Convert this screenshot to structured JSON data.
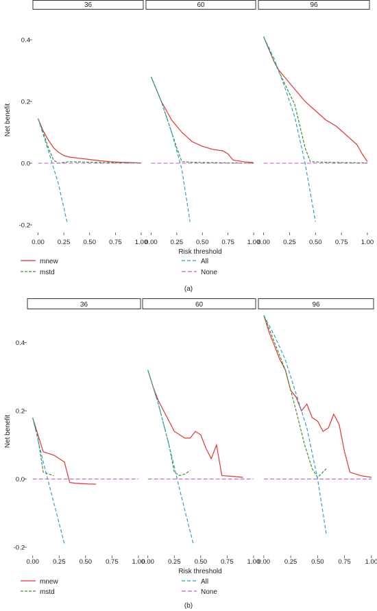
{
  "chart_data": [
    {
      "type": "line",
      "caption": "(a)",
      "ylabel": "Net benefit",
      "xlabel": "Risk threshold",
      "ylim": [
        -0.22,
        0.5
      ],
      "yticks": [
        -0.2,
        0.0,
        0.2,
        0.4
      ],
      "ytick_labels": [
        "-0.2",
        "0.0",
        "0.2",
        "0.4"
      ],
      "xticks": [
        0,
        0.25,
        0.5,
        0.75,
        1.0
      ],
      "xtick_labels": [
        "0.00",
        "0.25",
        "0.50",
        "0.75",
        "1.00"
      ],
      "xlim": [
        -0.05,
        1.02
      ],
      "legend": [
        {
          "label": "mnew",
          "color": "#e3342f"
        },
        {
          "label": "mstd",
          "color": "#3f8f2b"
        },
        {
          "label": "All",
          "color": "#2a9fd6"
        },
        {
          "label": "None",
          "color": "#c15bd6"
        }
      ],
      "facets": [
        {
          "title": "36",
          "series": [
            {
              "name": "mnew",
              "x": [
                0.0,
                0.05,
                0.1,
                0.15,
                0.2,
                0.25,
                0.3,
                0.35,
                0.4,
                0.5,
                0.6,
                0.7,
                0.8,
                0.9,
                1.0
              ],
              "y": [
                0.145,
                0.105,
                0.075,
                0.05,
                0.035,
                0.025,
                0.02,
                0.018,
                0.016,
                0.012,
                0.008,
                0.005,
                0.003,
                0.002,
                0.001
              ]
            },
            {
              "name": "mstd",
              "x": [
                0.0,
                0.05,
                0.1,
                0.15,
                0.2,
                0.3,
                0.5,
                0.7,
                1.0
              ],
              "y": [
                0.145,
                0.1,
                0.05,
                0.01,
                0.0,
                0.005,
                0.003,
                0.002,
                0.001
              ]
            },
            {
              "name": "All",
              "x": [
                0.0,
                0.1,
                0.2,
                0.28
              ],
              "y": [
                0.145,
                0.04,
                -0.07,
                -0.19
              ]
            },
            {
              "name": "None",
              "x": [
                0.0,
                1.0
              ],
              "y": [
                0.0,
                0.0
              ]
            }
          ]
        },
        {
          "title": "60",
          "series": [
            {
              "name": "mnew",
              "x": [
                0.0,
                0.05,
                0.1,
                0.15,
                0.2,
                0.25,
                0.3,
                0.35,
                0.4,
                0.5,
                0.6,
                0.7,
                0.75,
                0.8,
                0.9,
                1.0
              ],
              "y": [
                0.28,
                0.24,
                0.2,
                0.17,
                0.14,
                0.12,
                0.1,
                0.085,
                0.07,
                0.055,
                0.045,
                0.04,
                0.03,
                0.01,
                0.005,
                0.002
              ]
            },
            {
              "name": "mstd",
              "x": [
                0.0,
                0.1,
                0.2,
                0.25,
                0.3,
                0.4,
                0.6,
                0.8,
                1.0
              ],
              "y": [
                0.28,
                0.2,
                0.1,
                0.05,
                0.005,
                0.003,
                0.002,
                0.001,
                0.0
              ]
            },
            {
              "name": "All",
              "x": [
                0.0,
                0.1,
                0.2,
                0.3,
                0.38
              ],
              "y": [
                0.28,
                0.2,
                0.1,
                -0.02,
                -0.19
              ]
            },
            {
              "name": "None",
              "x": [
                0.0,
                1.0
              ],
              "y": [
                0.0,
                0.0
              ]
            }
          ]
        },
        {
          "title": "96",
          "series": [
            {
              "name": "mnew",
              "x": [
                0.0,
                0.05,
                0.1,
                0.15,
                0.2,
                0.25,
                0.3,
                0.35,
                0.4,
                0.5,
                0.6,
                0.7,
                0.8,
                0.9,
                0.95,
                1.0
              ],
              "y": [
                0.41,
                0.37,
                0.33,
                0.3,
                0.28,
                0.26,
                0.24,
                0.22,
                0.2,
                0.17,
                0.14,
                0.12,
                0.09,
                0.06,
                0.03,
                0.005
              ]
            },
            {
              "name": "mstd",
              "x": [
                0.0,
                0.1,
                0.2,
                0.3,
                0.35,
                0.4,
                0.45,
                0.6,
                0.8,
                1.0
              ],
              "y": [
                0.41,
                0.33,
                0.26,
                0.19,
                0.12,
                0.05,
                0.005,
                0.003,
                0.002,
                0.001
              ]
            },
            {
              "name": "All",
              "x": [
                0.0,
                0.1,
                0.2,
                0.3,
                0.4,
                0.5
              ],
              "y": [
                0.41,
                0.34,
                0.25,
                0.15,
                0.0,
                -0.19
              ]
            },
            {
              "name": "None",
              "x": [
                0.0,
                1.0
              ],
              "y": [
                0.0,
                0.0
              ]
            }
          ]
        }
      ]
    },
    {
      "type": "line",
      "caption": "(b)",
      "ylabel": "Net benefit",
      "xlabel": "Risk threshold",
      "ylim": [
        -0.22,
        0.5
      ],
      "yticks": [
        -0.2,
        0.0,
        0.2,
        0.4
      ],
      "ytick_labels": [
        "-0.2",
        "0.0",
        "0.2",
        "0.4"
      ],
      "xticks": [
        0,
        0.25,
        0.5,
        0.75,
        1.0
      ],
      "xtick_labels": [
        "0.00",
        "0.25",
        "0.50",
        "0.75",
        "1.00"
      ],
      "xlim": [
        -0.05,
        1.02
      ],
      "legend": [
        {
          "label": "mnew",
          "color": "#e3342f"
        },
        {
          "label": "mstd",
          "color": "#3f8f2b"
        },
        {
          "label": "All",
          "color": "#2a9fd6"
        },
        {
          "label": "None",
          "color": "#c15bd6"
        }
      ],
      "facets": [
        {
          "title": "36",
          "series": [
            {
              "name": "mnew",
              "x": [
                0.0,
                0.05,
                0.1,
                0.15,
                0.2,
                0.25,
                0.3,
                0.35,
                0.4,
                0.5,
                0.6
              ],
              "y": [
                0.18,
                0.13,
                0.08,
                0.075,
                0.07,
                0.06,
                0.05,
                -0.01,
                -0.012,
                -0.014,
                -0.015
              ]
            },
            {
              "name": "mstd",
              "x": [
                0.0,
                0.05,
                0.1,
                0.15,
                0.2
              ],
              "y": [
                0.18,
                0.12,
                0.02,
                0.015,
                0.01
              ]
            },
            {
              "name": "All",
              "x": [
                0.0,
                0.1,
                0.2,
                0.3
              ],
              "y": [
                0.18,
                0.05,
                -0.07,
                -0.19
              ]
            },
            {
              "name": "None",
              "x": [
                0.0,
                1.0
              ],
              "y": [
                0.0,
                0.0
              ]
            }
          ]
        },
        {
          "title": "60",
          "series": [
            {
              "name": "mnew",
              "x": [
                0.0,
                0.05,
                0.1,
                0.15,
                0.2,
                0.25,
                0.3,
                0.35,
                0.4,
                0.45,
                0.5,
                0.55,
                0.6,
                0.65,
                0.7,
                0.8,
                0.9
              ],
              "y": [
                0.32,
                0.27,
                0.23,
                0.2,
                0.17,
                0.14,
                0.13,
                0.12,
                0.12,
                0.14,
                0.13,
                0.09,
                0.06,
                0.1,
                0.01,
                0.008,
                0.005
              ]
            },
            {
              "name": "mstd",
              "x": [
                0.0,
                0.1,
                0.2,
                0.25,
                0.3,
                0.35,
                0.4
              ],
              "y": [
                0.32,
                0.22,
                0.1,
                0.02,
                0.01,
                0.015,
                0.025
              ]
            },
            {
              "name": "All",
              "x": [
                0.0,
                0.1,
                0.2,
                0.3,
                0.43
              ],
              "y": [
                0.32,
                0.22,
                0.1,
                -0.03,
                -0.19
              ]
            },
            {
              "name": "None",
              "x": [
                0.0,
                1.0
              ],
              "y": [
                0.0,
                0.0
              ]
            }
          ]
        },
        {
          "title": "96",
          "series": [
            {
              "name": "mnew",
              "x": [
                0.0,
                0.05,
                0.1,
                0.15,
                0.2,
                0.25,
                0.3,
                0.35,
                0.4,
                0.45,
                0.5,
                0.55,
                0.6,
                0.65,
                0.7,
                0.75,
                0.8,
                0.9,
                1.0
              ],
              "y": [
                0.48,
                0.43,
                0.39,
                0.35,
                0.32,
                0.26,
                0.24,
                0.2,
                0.22,
                0.18,
                0.17,
                0.14,
                0.15,
                0.19,
                0.16,
                0.08,
                0.02,
                0.01,
                0.005
              ]
            },
            {
              "name": "mstd",
              "x": [
                0.0,
                0.1,
                0.2,
                0.3,
                0.38,
                0.45,
                0.5,
                0.58
              ],
              "y": [
                0.48,
                0.4,
                0.32,
                0.2,
                0.1,
                0.03,
                0.005,
                0.03
              ]
            },
            {
              "name": "All",
              "x": [
                0.0,
                0.1,
                0.2,
                0.3,
                0.4,
                0.5,
                0.58
              ],
              "y": [
                0.48,
                0.42,
                0.35,
                0.25,
                0.15,
                0.0,
                -0.16
              ]
            },
            {
              "name": "None",
              "x": [
                0.0,
                1.0
              ],
              "y": [
                0.0,
                0.0
              ]
            }
          ]
        }
      ]
    }
  ]
}
